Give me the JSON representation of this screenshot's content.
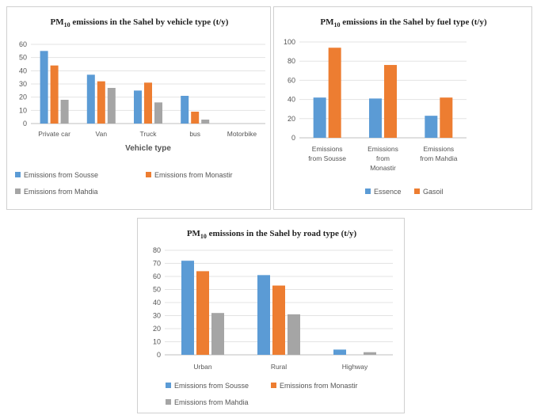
{
  "chart_data": [
    {
      "id": "vehicle",
      "type": "bar",
      "title_main": "PM",
      "title_sub": "10",
      "title_rest": " emissions in the Sahel by vehicle type (t/y)",
      "xlabel": "Vehicle type",
      "ylabel": "",
      "ylim": [
        0,
        60
      ],
      "yticks": [
        0,
        10,
        20,
        30,
        40,
        50,
        60
      ],
      "categories": [
        "Private car",
        "Van",
        "Truck",
        "bus",
        "Motorbike"
      ],
      "series": [
        {
          "name": "Emissions from Sousse",
          "color": "#5B9BD5",
          "values": [
            55,
            37,
            25,
            21,
            0
          ]
        },
        {
          "name": "Emissions from Monastir",
          "color": "#ED7D31",
          "values": [
            44,
            32,
            31,
            9,
            0
          ]
        },
        {
          "name": "Emissions from Mahdia",
          "color": "#A5A5A5",
          "values": [
            18,
            27,
            16,
            3,
            0
          ]
        }
      ],
      "grid": true,
      "legend": "bottom"
    },
    {
      "id": "fuel",
      "type": "bar",
      "title_main": "PM",
      "title_sub": "10",
      "title_rest": " emissions in the Sahel by fuel type (t/y)",
      "xlabel": "",
      "ylabel": "",
      "ylim": [
        0,
        100
      ],
      "yticks": [
        0,
        20,
        40,
        60,
        80,
        100
      ],
      "categories": [
        [
          "Emissions",
          "from Sousse"
        ],
        [
          "Emissions",
          "from",
          "Monastir"
        ],
        [
          "Emissions",
          "from Mahdia"
        ]
      ],
      "series": [
        {
          "name": "Essence",
          "color": "#5B9BD5",
          "values": [
            42,
            41,
            23
          ]
        },
        {
          "name": "Gasoil",
          "color": "#ED7D31",
          "values": [
            94,
            76,
            42
          ]
        }
      ],
      "grid": true,
      "legend": "bottom"
    },
    {
      "id": "road",
      "type": "bar",
      "title_main": "PM",
      "title_sub": "10",
      "title_rest": " emissions in the Sahel by road type (t/y)",
      "xlabel": "",
      "ylabel": "",
      "ylim": [
        0,
        80
      ],
      "yticks": [
        0,
        10,
        20,
        30,
        40,
        50,
        60,
        70,
        80
      ],
      "categories": [
        "Urban",
        "Rural",
        "Highway"
      ],
      "series": [
        {
          "name": "Emissions from Sousse",
          "color": "#5B9BD5",
          "values": [
            72,
            61,
            4
          ]
        },
        {
          "name": "Emissions from Monastir",
          "color": "#ED7D31",
          "values": [
            64,
            53,
            0
          ]
        },
        {
          "name": "Emissions from Mahdia",
          "color": "#A5A5A5",
          "values": [
            32,
            31,
            2
          ]
        }
      ],
      "grid": true,
      "legend": "bottom"
    }
  ]
}
